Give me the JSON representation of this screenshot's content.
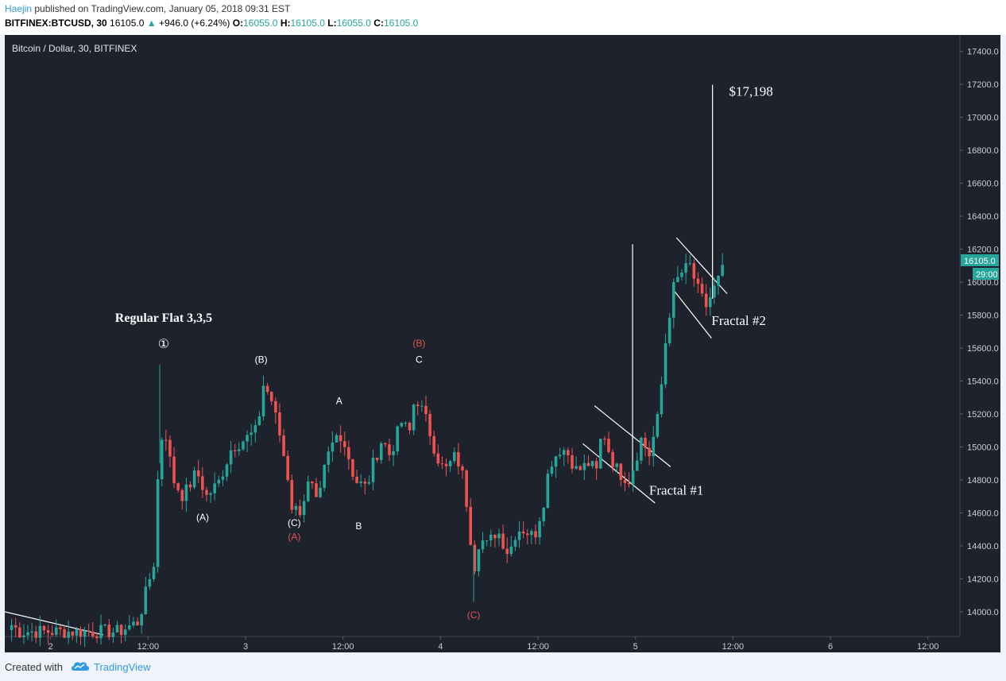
{
  "header": {
    "author": "Haejin",
    "published_text": "published on TradingView.com, January 05, 2018 09:31 EST",
    "symbol": "BITFINEX:BTCUSD, 30",
    "last": "16105.0",
    "arrow": "▲",
    "change": "+946.0 (+6.24%)",
    "o_label": "O:",
    "o_value": "16055.0",
    "h_label": "H:",
    "h_value": "16105.0",
    "l_label": "L:",
    "l_value": "16055.0",
    "c_label": "C:",
    "c_value": "16105.0"
  },
  "colors": {
    "background": "#1e222d",
    "up": "#26a69a",
    "down": "#ef5350",
    "text": "#ffffff",
    "axis_text": "#c9ccd6",
    "red_label": "#e05252",
    "price_badge": "#26a69a"
  },
  "footer": {
    "created_with": "Created with",
    "brand": "TradingView",
    "logo_icon": "tradingview-cloud-icon"
  },
  "chart_data": {
    "type": "candlestick",
    "title": "Bitcoin / Dollar, 30, BITFINEX",
    "ylim": [
      13850,
      17500
    ],
    "yticks": [
      14000,
      14200,
      14400,
      14600,
      14800,
      15000,
      15200,
      15400,
      15600,
      15800,
      16000,
      16200,
      16400,
      16600,
      16800,
      17000,
      17200,
      17400
    ],
    "xticks": [
      {
        "label": "2",
        "t": 2.0
      },
      {
        "label": "12:00",
        "t": 2.5
      },
      {
        "label": "3",
        "t": 3.0
      },
      {
        "label": "12:00",
        "t": 3.5
      },
      {
        "label": "4",
        "t": 4.0
      },
      {
        "label": "12:00",
        "t": 4.5
      },
      {
        "label": "5",
        "t": 5.0
      },
      {
        "label": "12:00",
        "t": 5.5
      },
      {
        "label": "6",
        "t": 6.0
      },
      {
        "label": "12:00",
        "t": 6.5
      }
    ],
    "xlim": [
      1.765,
      6.664
    ],
    "price_badge": "16105.0",
    "countdown_badge": "29:00",
    "anchors": [
      [
        1.8,
        13920
      ],
      [
        1.84,
        13880
      ],
      [
        2.35,
        13880
      ],
      [
        2.45,
        13940
      ],
      [
        2.53,
        14300
      ],
      [
        2.56,
        15050
      ],
      [
        2.6,
        15080
      ],
      [
        2.62,
        14820
      ],
      [
        2.68,
        14700
      ],
      [
        2.75,
        14850
      ],
      [
        2.8,
        14700
      ],
      [
        2.86,
        14780
      ],
      [
        2.93,
        15000
      ],
      [
        3.0,
        15050
      ],
      [
        3.06,
        15100
      ],
      [
        3.09,
        15380
      ],
      [
        3.13,
        15300
      ],
      [
        3.18,
        15050
      ],
      [
        3.22,
        14800
      ],
      [
        3.24,
        14620
      ],
      [
        3.28,
        14620
      ],
      [
        3.33,
        14800
      ],
      [
        3.37,
        14620
      ],
      [
        3.41,
        14900
      ],
      [
        3.44,
        15000
      ],
      [
        3.48,
        15100
      ],
      [
        3.52,
        14980
      ],
      [
        3.56,
        14800
      ],
      [
        3.62,
        14750
      ],
      [
        3.65,
        14880
      ],
      [
        3.7,
        15050
      ],
      [
        3.74,
        14950
      ],
      [
        3.8,
        15150
      ],
      [
        3.84,
        15080
      ],
      [
        3.87,
        15320
      ],
      [
        3.93,
        15150
      ],
      [
        3.98,
        14950
      ],
      [
        4.02,
        14850
      ],
      [
        4.08,
        14950
      ],
      [
        4.12,
        14800
      ],
      [
        4.15,
        14500
      ],
      [
        4.17,
        14250
      ],
      [
        4.2,
        14450
      ],
      [
        4.24,
        14400
      ],
      [
        4.29,
        14500
      ],
      [
        4.35,
        14350
      ],
      [
        4.39,
        14500
      ],
      [
        4.43,
        14500
      ],
      [
        4.48,
        14450
      ],
      [
        4.53,
        14680
      ],
      [
        4.56,
        14900
      ],
      [
        4.62,
        15000
      ],
      [
        4.66,
        14950
      ],
      [
        4.7,
        14850
      ],
      [
        4.76,
        14900
      ],
      [
        4.8,
        14850
      ],
      [
        4.83,
        15120
      ],
      [
        4.87,
        14950
      ],
      [
        4.91,
        14850
      ],
      [
        4.97,
        14800
      ],
      [
        5.03,
        15050
      ],
      [
        5.07,
        14950
      ],
      [
        5.12,
        15200
      ],
      [
        5.15,
        15600
      ],
      [
        5.19,
        15950
      ],
      [
        5.23,
        16050
      ],
      [
        5.28,
        16100
      ],
      [
        5.32,
        15950
      ],
      [
        5.36,
        15850
      ],
      [
        5.42,
        16000
      ],
      [
        5.46,
        16105
      ]
    ],
    "overlays": [
      {
        "name": "spike-1",
        "x": 4.985,
        "y1": 14780,
        "y2": 16230
      },
      {
        "name": "spike-2",
        "x": 5.395,
        "y1": 15900,
        "y2": 17198
      }
    ],
    "channels": [
      {
        "name": "fractal-1-upper",
        "a": [
          4.79,
          15250
        ],
        "b": [
          5.18,
          14880
        ]
      },
      {
        "name": "fractal-1-lower",
        "a": [
          4.73,
          15020
        ],
        "b": [
          5.1,
          14660
        ]
      },
      {
        "name": "fractal-2-upper",
        "a": [
          5.21,
          16270
        ],
        "b": [
          5.47,
          15930
        ]
      },
      {
        "name": "fractal-2-lower",
        "a": [
          5.19,
          15960
        ],
        "b": [
          5.39,
          15660
        ]
      },
      {
        "name": "trend-line-bottom",
        "a": [
          1.765,
          14000
        ],
        "b": [
          2.27,
          13860
        ]
      }
    ],
    "annotations": [
      {
        "text": "①",
        "t": 2.58,
        "p": 15600,
        "style": "circle"
      },
      {
        "text": "Regular Flat 3,3,5",
        "t": 2.58,
        "p": 15760,
        "style": "title"
      },
      {
        "text": "(A)",
        "t": 2.78,
        "p": 14555,
        "style": "white"
      },
      {
        "text": "(B)",
        "t": 3.08,
        "p": 15510,
        "style": "white"
      },
      {
        "text": "(C)",
        "t": 3.25,
        "p": 14520,
        "style": "white"
      },
      {
        "text": "(A)",
        "t": 3.25,
        "p": 14435,
        "style": "red"
      },
      {
        "text": "A",
        "t": 3.48,
        "p": 15260,
        "style": "white"
      },
      {
        "text": "B",
        "t": 3.58,
        "p": 14500,
        "style": "white"
      },
      {
        "text": "(B)",
        "t": 3.89,
        "p": 15610,
        "style": "red"
      },
      {
        "text": "C",
        "t": 3.89,
        "p": 15510,
        "style": "white"
      },
      {
        "text": "(C)",
        "t": 4.17,
        "p": 13960,
        "style": "red"
      },
      {
        "text": "Fractal #1",
        "t": 5.07,
        "p": 14710,
        "style": "big"
      },
      {
        "text": "Fractal #2",
        "t": 5.39,
        "p": 15740,
        "style": "big"
      },
      {
        "text": "$17,198",
        "t": 5.48,
        "p": 17130,
        "style": "big"
      }
    ]
  }
}
